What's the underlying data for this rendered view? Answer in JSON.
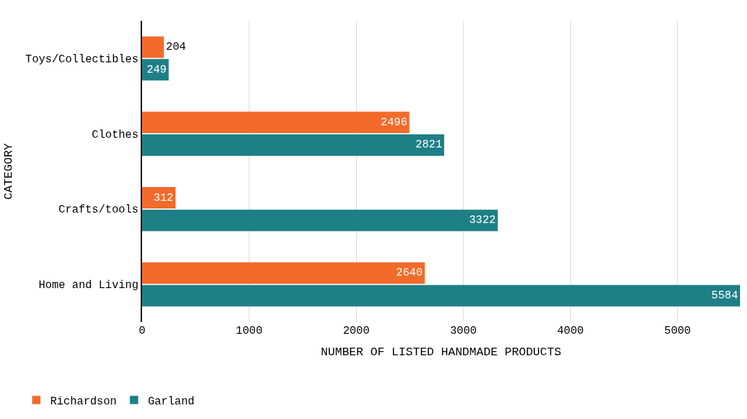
{
  "chart_data": {
    "type": "bar",
    "orientation": "horizontal",
    "xlabel": "NUMBER OF LISTED HANDMADE PRODUCTS",
    "ylabel": "CATEGORY",
    "categories": [
      "Toys/Collectibles",
      "Clothes",
      "Crafts/tools",
      "Home and Living"
    ],
    "series": [
      {
        "name": "Richardson",
        "color": "#f26b2a",
        "values": [
          204,
          2496,
          312,
          2640
        ]
      },
      {
        "name": "Garland",
        "color": "#1e8086",
        "values": [
          249,
          2821,
          3322,
          5584
        ]
      }
    ],
    "xlim": [
      0,
      5584
    ],
    "xticks": [
      0,
      1000,
      2000,
      3000,
      4000,
      5000
    ],
    "grid": "x",
    "legend": "bottom left",
    "data_labels": true
  }
}
